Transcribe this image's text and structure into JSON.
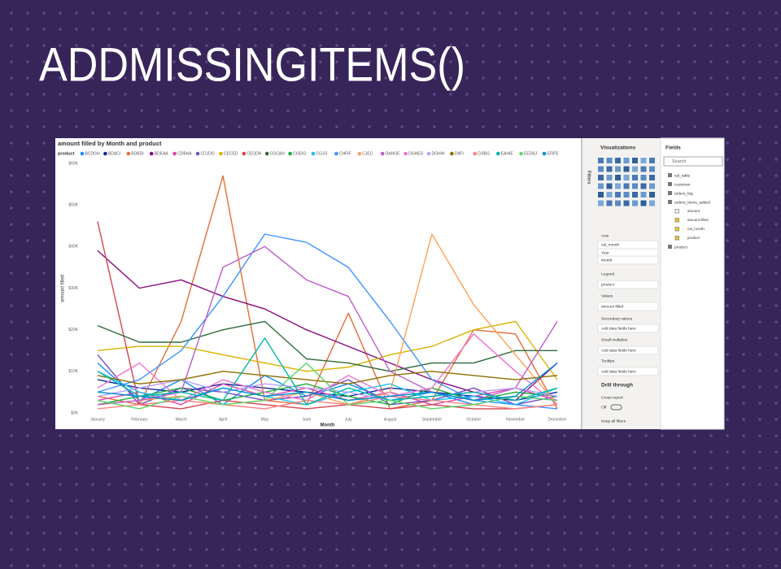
{
  "slide": {
    "title": "ADDMISSINGITEMS()"
  },
  "chart_data": {
    "type": "line",
    "title": "amount filled by Month and product",
    "legend_title": "product",
    "x_label": "Month",
    "y_label": "amount filled",
    "categories": [
      "January",
      "February",
      "March",
      "April",
      "May",
      "June",
      "July",
      "August",
      "September",
      "October",
      "November",
      "December"
    ],
    "ylim": [
      0,
      60000
    ],
    "yticks": [
      {
        "value": 0,
        "label": "$0K"
      },
      {
        "value": 10000,
        "label": "$10K"
      },
      {
        "value": 20000,
        "label": "$20K"
      },
      {
        "value": 30000,
        "label": "$30K"
      },
      {
        "value": 40000,
        "label": "$40K"
      },
      {
        "value": 50000,
        "label": "$50K"
      },
      {
        "value": 60000,
        "label": "$60K"
      }
    ],
    "grid": false,
    "series": [
      {
        "name": "BCDGH",
        "color": "#118DFF",
        "values": [
          12000,
          3000,
          8000,
          2000,
          9000,
          4000,
          7000,
          3000,
          5000,
          2000,
          4000,
          3000
        ]
      },
      {
        "name": "BDACI",
        "color": "#12239E",
        "values": [
          8000,
          6000,
          5000,
          7000,
          6000,
          5000,
          4000,
          6000,
          5000,
          4000,
          3000,
          5000
        ]
      },
      {
        "name": "BDBDI",
        "color": "#E66C37",
        "values": [
          4000,
          2000,
          22000,
          57000,
          3000,
          2000,
          24000,
          1000,
          3000,
          20000,
          19000,
          1000
        ]
      },
      {
        "name": "BDEAA",
        "color": "#8A0A7E",
        "values": [
          39000,
          30000,
          32000,
          28000,
          25000,
          20000,
          16000,
          12000,
          8000,
          5000,
          3000,
          12000
        ]
      },
      {
        "name": "CDBHA",
        "color": "#E044A7",
        "values": [
          3000,
          5000,
          2000,
          7000,
          4000,
          6000,
          3000,
          5000,
          2000,
          4000,
          6000,
          3000
        ]
      },
      {
        "name": "CDJDG",
        "color": "#744EC2",
        "values": [
          14000,
          2000,
          6000,
          5000,
          3000,
          4000,
          8000,
          2000,
          3000,
          6000,
          2000,
          4000
        ]
      },
      {
        "name": "CECED",
        "color": "#D9B300",
        "values": [
          15000,
          16000,
          16000,
          14000,
          12000,
          10000,
          11000,
          14000,
          16000,
          20000,
          22000,
          8000
        ]
      },
      {
        "name": "CEGDH",
        "color": "#D64550",
        "values": [
          46000,
          2000,
          1000,
          3000,
          2000,
          1000,
          2000,
          1000,
          2000,
          1000,
          1000,
          2000
        ]
      },
      {
        "name": "CGCAH",
        "color": "#2E6B3A",
        "values": [
          21000,
          17000,
          17000,
          20000,
          22000,
          13000,
          12000,
          10000,
          12000,
          12000,
          15000,
          15000
        ]
      },
      {
        "name": "CGEIG",
        "color": "#1AAB40",
        "values": [
          2000,
          4000,
          6000,
          3000,
          5000,
          7000,
          4000,
          2000,
          6000,
          3000,
          5000,
          4000
        ]
      },
      {
        "name": "CGJIJ",
        "color": "#15C6F4",
        "values": [
          10000,
          5000,
          3000,
          6000,
          4000,
          2000,
          5000,
          7000,
          3000,
          4000,
          2000,
          6000
        ]
      },
      {
        "name": "CHFIF",
        "color": "#4092FF",
        "values": [
          5000,
          8000,
          15000,
          28000,
          43000,
          41000,
          35000,
          22000,
          8000,
          3000,
          2000,
          1000
        ]
      },
      {
        "name": "CJEC",
        "color": "#FFA058",
        "values": [
          2000,
          3000,
          4000,
          2000,
          3000,
          5000,
          2000,
          5000,
          43000,
          26000,
          14000,
          2000
        ]
      },
      {
        "name": "DAHGE",
        "color": "#BE5DC9",
        "values": [
          2000,
          3000,
          5000,
          35000,
          40000,
          32000,
          28000,
          10000,
          5000,
          3000,
          6000,
          22000
        ]
      },
      {
        "name": "DGHEG",
        "color": "#F472D0",
        "values": [
          6000,
          12000,
          3000,
          8000,
          5000,
          3000,
          9000,
          4000,
          6000,
          19000,
          10000,
          2000
        ]
      },
      {
        "name": "DGHHI",
        "color": "#B5A1FF",
        "values": [
          4000,
          6000,
          8000,
          5000,
          7000,
          6000,
          5000,
          3000,
          4000,
          5000,
          6000,
          4000
        ]
      },
      {
        "name": "DIIFI",
        "color": "#8C6E00",
        "values": [
          9000,
          7000,
          8000,
          10000,
          9000,
          8000,
          7000,
          9000,
          10000,
          9000,
          8000,
          9000
        ]
      },
      {
        "name": "DJIBG",
        "color": "#FF8080",
        "values": [
          1000,
          2000,
          3000,
          2000,
          1000,
          3000,
          2000,
          4000,
          3000,
          2000,
          1000,
          2000
        ]
      },
      {
        "name": "EAHIE",
        "color": "#00B8A9",
        "values": [
          10000,
          4000,
          5000,
          3000,
          18000,
          2000,
          6000,
          3000,
          4000,
          5000,
          3000,
          6000
        ]
      },
      {
        "name": "EEDBJ",
        "color": "#5BD667",
        "values": [
          3000,
          1000,
          4000,
          2000,
          3000,
          12000,
          2000,
          3000,
          1000,
          2000,
          4000,
          3000
        ]
      },
      {
        "name": "EFIFE",
        "color": "#0091D5",
        "values": [
          5000,
          4000,
          3000,
          6000,
          4000,
          5000,
          3000,
          4000,
          5000,
          3000,
          4000,
          12000
        ]
      }
    ]
  },
  "filters_tab": "Filters",
  "visualizations_pane": {
    "title": "Visualizations",
    "axis_label": "Axis",
    "axis_fields": [
      "cal_month",
      "Year",
      "Month"
    ],
    "legend_label": "Legend",
    "legend_field": "product",
    "values_label": "Values",
    "values_field": "amount filled",
    "secondary_label": "Secondary values",
    "secondary_placeholder": "Add data fields here",
    "small_multiples_label": "Small multiples",
    "small_multiples_placeholder": "Add data fields here",
    "tooltips_label": "Tooltips",
    "tooltips_placeholder": "Add data fields here",
    "drill_through": "Drill through",
    "cross_report": "Cross-report",
    "cross_report_state": "Off",
    "keep_all_filters": "Keep all filters"
  },
  "fields_pane": {
    "title": "Fields",
    "search": "Search",
    "tables": [
      {
        "name": "cal_table"
      },
      {
        "name": "customer"
      },
      {
        "name": "orders_big"
      },
      {
        "name": "orders_items_added",
        "fields": [
          "amount",
          "amount filled",
          "cal_month",
          "product"
        ]
      },
      {
        "name": "product"
      }
    ]
  }
}
